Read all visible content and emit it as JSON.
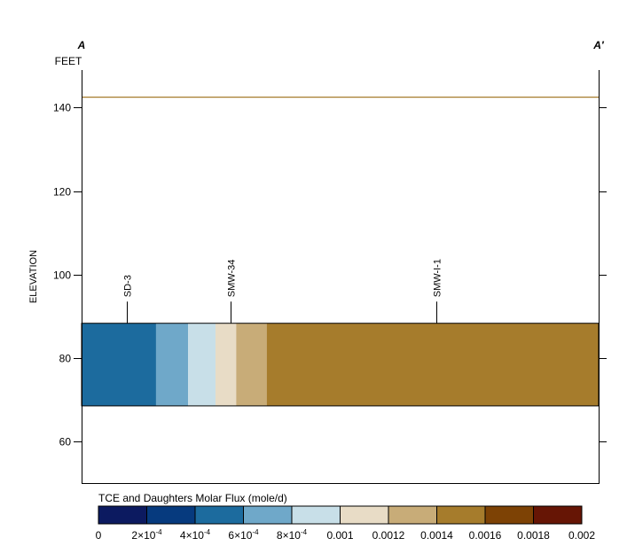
{
  "chart_data": {
    "type": "section",
    "section_labels": {
      "left": "A",
      "right": "A′"
    },
    "units_label": "FEET",
    "ylabel": "ELEVATION",
    "ylim": [
      50,
      149
    ],
    "yticks": [
      60,
      80,
      100,
      120,
      140
    ],
    "ytick_labels": [
      "60",
      "80",
      "100",
      "120",
      "140"
    ],
    "ground_surface_elevation": 142.5,
    "ground_line_color": "#a67c2c",
    "flux_layer": {
      "top_elevation": 88.3,
      "bottom_elevation": 68.5,
      "segments": [
        {
          "from": 0.0,
          "to": 0.144,
          "color": "#1c6b9e"
        },
        {
          "from": 0.144,
          "to": 0.206,
          "color": "#6fa8c9"
        },
        {
          "from": 0.206,
          "to": 0.259,
          "color": "#c8dfe8"
        },
        {
          "from": 0.259,
          "to": 0.299,
          "color": "#e8dcc6"
        },
        {
          "from": 0.299,
          "to": 0.358,
          "color": "#c8ac78"
        },
        {
          "from": 0.358,
          "to": 1.0,
          "color": "#a67c2c"
        }
      ]
    },
    "wells": [
      {
        "name": "SD-3",
        "position": 0.087
      },
      {
        "name": "SMW-34",
        "position": 0.288
      },
      {
        "name": "SMW-I-1",
        "position": 0.686
      }
    ],
    "well_stick_top_elevation": 93.5,
    "colorbar": {
      "title": "TCE and Daughters Molar Flux (mole/d)",
      "colors": [
        "#0c1a60",
        "#063a7e",
        "#1c6b9e",
        "#6fa8c9",
        "#c8dfe8",
        "#e8dcc6",
        "#c8ac78",
        "#a67c2c",
        "#7d4205",
        "#661505"
      ],
      "tick_labels": [
        {
          "mant": "0",
          "exp": ""
        },
        {
          "mant": "2×10",
          "exp": "-4"
        },
        {
          "mant": "4×10",
          "exp": "-4"
        },
        {
          "mant": "6×10",
          "exp": "-4"
        },
        {
          "mant": "8×10",
          "exp": "-4"
        },
        {
          "mant": "0.001",
          "exp": ""
        },
        {
          "mant": "0.0012",
          "exp": ""
        },
        {
          "mant": "0.0014",
          "exp": ""
        },
        {
          "mant": "0.0016",
          "exp": ""
        },
        {
          "mant": "0.0018",
          "exp": ""
        },
        {
          "mant": "0.002",
          "exp": ""
        }
      ]
    }
  }
}
